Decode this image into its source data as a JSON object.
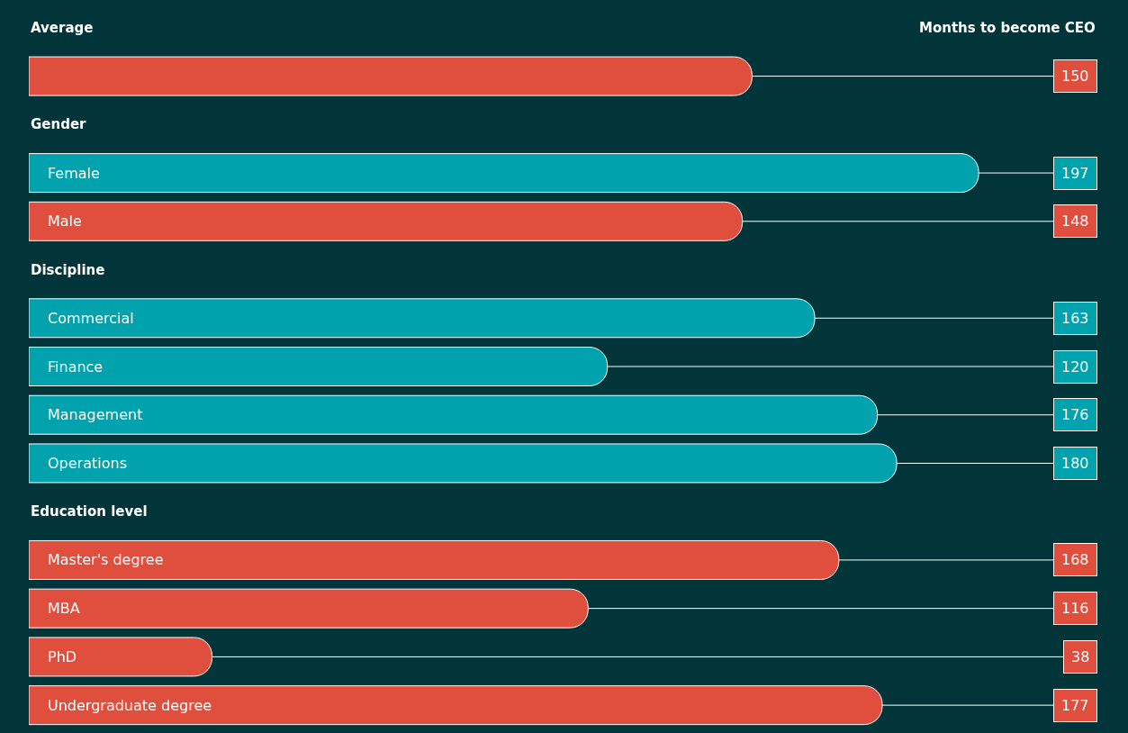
{
  "chart_data": {
    "type": "bar",
    "orientation": "horizontal",
    "xlabel": "Months to become CEO",
    "categories": [
      "Average",
      null,
      "Gender",
      "Female",
      "Male",
      "Discipline",
      "Commercial",
      "Finance",
      "Management",
      "Operations",
      "Education level",
      "Master's degree",
      "MBA",
      "PhD",
      "Undergraduate degree"
    ],
    "values": [
      null,
      150,
      null,
      197,
      148,
      null,
      163,
      120,
      176,
      180,
      null,
      168,
      116,
      38,
      177
    ],
    "colors": [
      null,
      "#e04e3d",
      null,
      "#00a3ad",
      "#e04e3d",
      null,
      "#00a3ad",
      "#00a3ad",
      "#00a3ad",
      "#00a3ad",
      null,
      "#e04e3d",
      "#e04e3d",
      "#e04e3d",
      "#e04e3d"
    ],
    "data_labels": true
  }
}
